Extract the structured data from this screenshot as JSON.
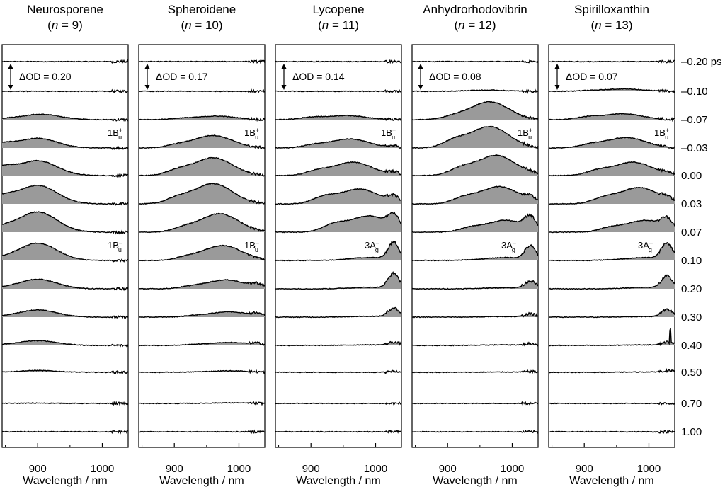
{
  "chart_data": {
    "type": "line",
    "description_units": {
      "x": "Wavelength / nm",
      "y": "ΔOD"
    },
    "delays": [
      "–0.20 ps",
      "–0.10",
      "–0.07",
      "–0.03",
      "0.00",
      "0.03",
      "0.07",
      "0.10",
      "0.20",
      "0.30",
      "0.40",
      "0.50",
      "0.70",
      "1.00"
    ],
    "delay_values": [
      -0.2,
      -0.1,
      -0.07,
      -0.03,
      0.0,
      0.03,
      0.07,
      0.1,
      0.2,
      0.3,
      0.4,
      0.5,
      0.7,
      1.0
    ],
    "xlim": [
      845,
      1040
    ],
    "xticks": [
      900,
      1000
    ],
    "xlabel": "Wavelength / nm",
    "panels": [
      {
        "title_line1": "Neurosporene",
        "title_line2": "(n = 9)",
        "n": 9,
        "delta_label": "ΔOD = 0.20",
        "state_labels": [
          {
            "text": "1B",
            "sub": "u",
            "sup": "+",
            "trace": 3
          },
          {
            "text": "1B",
            "sub": "u",
            "sup": "–",
            "trace": 7
          }
        ],
        "amplitudes": [
          0,
          0,
          0.18,
          0.32,
          0.5,
          0.62,
          0.68,
          0.58,
          0.32,
          0.24,
          0.16,
          0.06,
          0.01,
          0
        ],
        "band_a_center": [
          900,
          905,
          905,
          900,
          900,
          900,
          900,
          900,
          900,
          900,
          900,
          900,
          900,
          900
        ],
        "band_b_weight": [
          0,
          0,
          0.15,
          0.4,
          0.5,
          0.35,
          0.2,
          0.1,
          0.05,
          0.05,
          0.05,
          0.05,
          0,
          0
        ],
        "red_edge": [
          0,
          0,
          0,
          0,
          0,
          0,
          0,
          0,
          0,
          0,
          0,
          0,
          0,
          0
        ]
      },
      {
        "title_line1": "Spheroidene",
        "title_line2": "(n = 10)",
        "n": 10,
        "delta_label": "ΔOD = 0.17",
        "state_labels": [
          {
            "text": "1B",
            "sub": "u",
            "sup": "+",
            "trace": 3
          },
          {
            "text": "1B",
            "sub": "u",
            "sup": "–",
            "trace": 7
          }
        ],
        "amplitudes": [
          0,
          0,
          0.12,
          0.42,
          0.6,
          0.68,
          0.62,
          0.5,
          0.3,
          0.18,
          0.1,
          0.05,
          0.02,
          0
        ],
        "band_a_center": [
          960,
          960,
          965,
          960,
          960,
          960,
          970,
          975,
          980,
          985,
          985,
          985,
          985,
          985
        ],
        "band_b_weight": [
          0,
          0,
          0.3,
          0.2,
          0.25,
          0.25,
          0.2,
          0.2,
          0.2,
          0.2,
          0.2,
          0.1,
          0,
          0
        ],
        "red_edge": [
          0,
          0,
          0,
          0,
          0,
          0,
          0,
          0,
          0.12,
          0.08,
          0.05,
          0,
          0,
          0
        ]
      },
      {
        "title_line1": "Lycopene",
        "title_line2": "(n = 11)",
        "n": 11,
        "delta_label": "ΔOD = 0.14",
        "state_labels": [
          {
            "text": "1B",
            "sub": "u",
            "sup": "+",
            "trace": 3
          },
          {
            "text": "3A",
            "sub": "g",
            "sup": "–",
            "trace": 7
          }
        ],
        "amplitudes": [
          0,
          0,
          0.14,
          0.3,
          0.45,
          0.5,
          0.55,
          0.1,
          0.05,
          0.03,
          0.02,
          0,
          0,
          0
        ],
        "band_a_center": [
          960,
          960,
          955,
          960,
          965,
          975,
          990,
          990,
          990,
          990,
          990,
          990,
          990,
          990
        ],
        "band_b_weight": [
          0,
          0,
          0.5,
          0.3,
          0.3,
          0.4,
          0.4,
          0,
          0,
          0,
          0,
          0,
          0,
          0
        ],
        "red_edge": [
          0,
          0,
          0,
          0.05,
          0.1,
          0.2,
          0.4,
          0.58,
          0.5,
          0.3,
          0.1,
          0.03,
          0,
          0
        ]
      },
      {
        "title_line1": "Anhydrorhodovibrin",
        "title_line2": "(n = 12)",
        "n": 12,
        "delta_label": "ΔOD = 0.08",
        "state_labels": [
          {
            "text": "1B",
            "sub": "u",
            "sup": "+",
            "trace": 3
          },
          {
            "text": "3A",
            "sub": "g",
            "sup": "–",
            "trace": 7
          }
        ],
        "amplitudes": [
          0,
          0.04,
          0.6,
          0.72,
          0.68,
          0.58,
          0.4,
          0.1,
          0.04,
          0.02,
          0.02,
          0.01,
          0,
          0
        ],
        "band_a_center": [
          960,
          960,
          965,
          965,
          975,
          980,
          990,
          990,
          990,
          990,
          990,
          990,
          990,
          990
        ],
        "band_b_weight": [
          0,
          0,
          0.15,
          0.3,
          0.3,
          0.3,
          0.3,
          0.1,
          0,
          0,
          0,
          0,
          0,
          0
        ],
        "red_edge": [
          0,
          0,
          0,
          0,
          0.05,
          0.15,
          0.4,
          0.45,
          0.25,
          0.1,
          0.05,
          0.02,
          0,
          0
        ]
      },
      {
        "title_line1": "Spirilloxanthin",
        "title_line2": "(n = 13)",
        "n": 13,
        "delta_label": "ΔOD = 0.07",
        "state_labels": [
          {
            "text": "1B",
            "sub": "u",
            "sup": "+",
            "trace": 3
          },
          {
            "text": "3A",
            "sub": "g",
            "sup": "–",
            "trace": 7
          }
        ],
        "amplitudes": [
          0,
          0.08,
          0.2,
          0.35,
          0.45,
          0.55,
          0.4,
          0.1,
          0.05,
          0.02,
          0.02,
          0.01,
          0,
          0
        ],
        "band_a_center": [
          955,
          960,
          960,
          965,
          975,
          985,
          995,
          995,
          995,
          995,
          995,
          995,
          995,
          995
        ],
        "band_b_weight": [
          0,
          0.2,
          0.4,
          0.3,
          0.3,
          0.3,
          0.3,
          0.1,
          0,
          0,
          0,
          0,
          0,
          0
        ],
        "red_edge": [
          0,
          0,
          0,
          0,
          0.05,
          0.1,
          0.3,
          0.55,
          0.4,
          0.25,
          0.1,
          0.05,
          0,
          0
        ],
        "spike": {
          "trace": 10,
          "x": 1033,
          "height": 0.45
        }
      }
    ]
  }
}
